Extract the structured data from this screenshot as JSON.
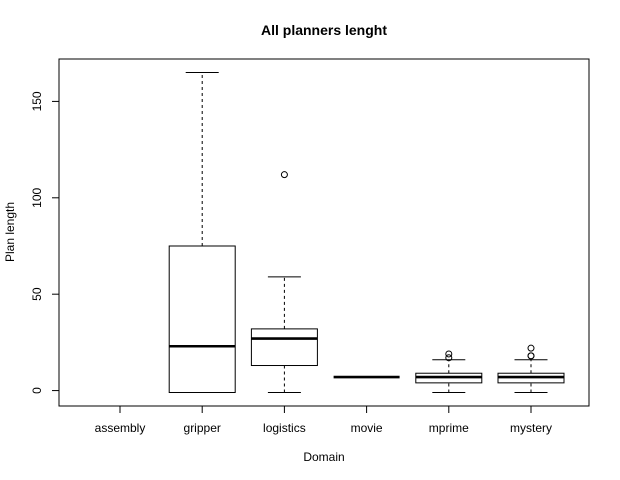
{
  "chart_data": {
    "type": "boxplot",
    "title": "All planners lenght",
    "xlabel": "Domain",
    "ylabel": "Plan length",
    "categories": [
      "assembly",
      "gripper",
      "logistics",
      "movie",
      "mprime",
      "mystery"
    ],
    "ylim": [
      -8,
      172
    ],
    "yticks": [
      0,
      50,
      100,
      150
    ],
    "grid": false,
    "boxes": [
      {
        "category": "assembly",
        "min": null,
        "q1": null,
        "median": null,
        "q3": null,
        "max": null,
        "outliers": []
      },
      {
        "category": "gripper",
        "min": -1,
        "q1": -1,
        "median": 23,
        "q3": 75,
        "max": 165,
        "outliers": []
      },
      {
        "category": "logistics",
        "min": -1,
        "q1": 13,
        "median": 27,
        "q3": 32,
        "max": 59,
        "outliers": [
          112
        ]
      },
      {
        "category": "movie",
        "min": 7,
        "q1": 7,
        "median": 7,
        "q3": 7,
        "max": 7,
        "outliers": []
      },
      {
        "category": "mprime",
        "min": -1,
        "q1": 4,
        "median": 7,
        "q3": 9,
        "max": 16,
        "outliers": [
          17,
          19
        ]
      },
      {
        "category": "mystery",
        "min": -1,
        "q1": 4,
        "median": 7,
        "q3": 9,
        "max": 16,
        "outliers": [
          18,
          18,
          22
        ]
      }
    ]
  }
}
